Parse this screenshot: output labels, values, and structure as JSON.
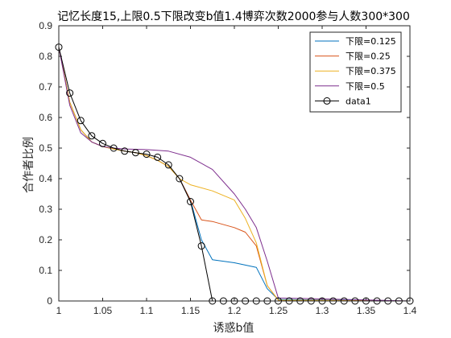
{
  "chart_data": {
    "type": "line",
    "title": "记忆长度15,上限0.5下限改变b值1.4博弈次数2000参与人数300*300",
    "xlabel": "诱惑b值",
    "ylabel": "合作者比例",
    "xlim": [
      1,
      1.4
    ],
    "ylim": [
      0,
      0.9
    ],
    "xticks": [
      1,
      1.05,
      1.1,
      1.15,
      1.2,
      1.25,
      1.3,
      1.35,
      1.4
    ],
    "xtick_labels": [
      "1",
      "1.05",
      "1.1",
      "1.15",
      "1.2",
      "1.25",
      "1.3",
      "1.35",
      "1.4"
    ],
    "yticks": [
      0,
      0.1,
      0.2,
      0.3,
      0.4,
      0.5,
      0.6,
      0.7,
      0.8,
      0.9
    ],
    "ytick_labels": [
      "0",
      "0.1",
      "0.2",
      "0.3",
      "0.4",
      "0.5",
      "0.6",
      "0.7",
      "0.8",
      "0.9"
    ],
    "grid": false,
    "legend_position": "top-right",
    "x": [
      1,
      1.0125,
      1.025,
      1.0375,
      1.05,
      1.0625,
      1.075,
      1.0875,
      1.1,
      1.1125,
      1.125,
      1.1375,
      1.15,
      1.1625,
      1.175,
      1.1875,
      1.2,
      1.2125,
      1.225,
      1.2375,
      1.25,
      1.2625,
      1.275,
      1.2875,
      1.3,
      1.3125,
      1.325,
      1.3375,
      1.35,
      1.3625,
      1.375,
      1.3875,
      1.4
    ],
    "series": [
      {
        "name": "下限=0.125",
        "color": "#0072BD",
        "marker": "none",
        "points": [
          [
            1,
            0.83
          ],
          [
            1.0125,
            0.65
          ],
          [
            1.025,
            0.56
          ],
          [
            1.0375,
            0.52
          ],
          [
            1.05,
            0.505
          ],
          [
            1.0625,
            0.497
          ],
          [
            1.075,
            0.49
          ],
          [
            1.0875,
            0.485
          ],
          [
            1.1,
            0.475
          ],
          [
            1.1125,
            0.46
          ],
          [
            1.125,
            0.44
          ],
          [
            1.1375,
            0.4
          ],
          [
            1.15,
            0.33
          ],
          [
            1.1625,
            0.2
          ],
          [
            1.175,
            0.135
          ],
          [
            1.2,
            0.125
          ],
          [
            1.225,
            0.11
          ],
          [
            1.2375,
            0.04
          ],
          [
            1.25,
            0.005
          ],
          [
            1.4,
            0
          ]
        ]
      },
      {
        "name": "下限=0.25",
        "color": "#D95319",
        "marker": "none",
        "points": [
          [
            1,
            0.83
          ],
          [
            1.0125,
            0.65
          ],
          [
            1.025,
            0.56
          ],
          [
            1.0375,
            0.52
          ],
          [
            1.05,
            0.505
          ],
          [
            1.0625,
            0.497
          ],
          [
            1.075,
            0.49
          ],
          [
            1.0875,
            0.485
          ],
          [
            1.1,
            0.475
          ],
          [
            1.1125,
            0.46
          ],
          [
            1.125,
            0.44
          ],
          [
            1.1375,
            0.4
          ],
          [
            1.15,
            0.33
          ],
          [
            1.1625,
            0.265
          ],
          [
            1.175,
            0.26
          ],
          [
            1.2,
            0.24
          ],
          [
            1.2125,
            0.225
          ],
          [
            1.225,
            0.18
          ],
          [
            1.2375,
            0.05
          ],
          [
            1.25,
            0.003
          ],
          [
            1.4,
            0
          ]
        ]
      },
      {
        "name": "下限=0.375",
        "color": "#EDB120",
        "marker": "none",
        "points": [
          [
            1,
            0.83
          ],
          [
            1.0125,
            0.65
          ],
          [
            1.025,
            0.56
          ],
          [
            1.0375,
            0.52
          ],
          [
            1.05,
            0.505
          ],
          [
            1.0625,
            0.497
          ],
          [
            1.075,
            0.49
          ],
          [
            1.0875,
            0.485
          ],
          [
            1.1,
            0.475
          ],
          [
            1.1125,
            0.46
          ],
          [
            1.125,
            0.44
          ],
          [
            1.1375,
            0.4
          ],
          [
            1.15,
            0.38
          ],
          [
            1.175,
            0.36
          ],
          [
            1.2,
            0.33
          ],
          [
            1.2125,
            0.27
          ],
          [
            1.225,
            0.19
          ],
          [
            1.2375,
            0.05
          ],
          [
            1.25,
            0.003
          ],
          [
            1.4,
            0
          ]
        ]
      },
      {
        "name": "下限=0.5",
        "color": "#7E2F8E",
        "marker": "none",
        "points": [
          [
            1,
            0.83
          ],
          [
            1.0125,
            0.64
          ],
          [
            1.025,
            0.55
          ],
          [
            1.0375,
            0.52
          ],
          [
            1.05,
            0.505
          ],
          [
            1.0625,
            0.5
          ],
          [
            1.075,
            0.497
          ],
          [
            1.1,
            0.495
          ],
          [
            1.125,
            0.49
          ],
          [
            1.15,
            0.47
          ],
          [
            1.175,
            0.43
          ],
          [
            1.2,
            0.35
          ],
          [
            1.2125,
            0.3
          ],
          [
            1.225,
            0.24
          ],
          [
            1.2375,
            0.13
          ],
          [
            1.25,
            0.01
          ],
          [
            1.4,
            0
          ]
        ]
      },
      {
        "name": "data1",
        "color": "#000000",
        "marker": "circle",
        "points": [
          [
            1,
            0.83
          ],
          [
            1.0125,
            0.68
          ],
          [
            1.025,
            0.59
          ],
          [
            1.0375,
            0.54
          ],
          [
            1.05,
            0.515
          ],
          [
            1.0625,
            0.5
          ],
          [
            1.075,
            0.49
          ],
          [
            1.0875,
            0.485
          ],
          [
            1.1,
            0.48
          ],
          [
            1.1125,
            0.47
          ],
          [
            1.125,
            0.445
          ],
          [
            1.1375,
            0.4
          ],
          [
            1.15,
            0.325
          ],
          [
            1.1625,
            0.18
          ],
          [
            1.175,
            0
          ],
          [
            1.1875,
            0
          ],
          [
            1.2,
            0
          ],
          [
            1.2125,
            0
          ],
          [
            1.225,
            0
          ],
          [
            1.2375,
            0
          ],
          [
            1.25,
            0
          ],
          [
            1.2625,
            0
          ],
          [
            1.275,
            0
          ],
          [
            1.2875,
            0
          ],
          [
            1.3,
            0
          ],
          [
            1.3125,
            0
          ],
          [
            1.325,
            0
          ],
          [
            1.3375,
            0
          ],
          [
            1.35,
            0
          ],
          [
            1.3625,
            0
          ],
          [
            1.375,
            0
          ],
          [
            1.3875,
            0
          ],
          [
            1.4,
            0
          ]
        ]
      }
    ]
  }
}
